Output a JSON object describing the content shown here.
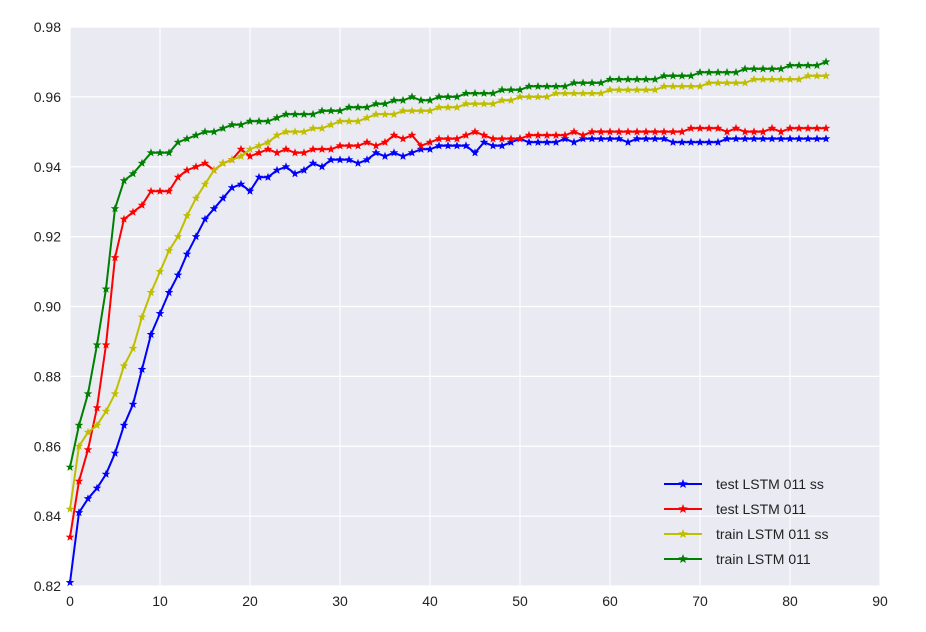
{
  "chart_data": {
    "type": "line",
    "title": "",
    "xlabel": "",
    "ylabel": "",
    "xlim": [
      0,
      90
    ],
    "ylim": [
      0.82,
      0.98
    ],
    "xticks": [
      "0",
      "10",
      "20",
      "30",
      "40",
      "50",
      "60",
      "70",
      "80",
      "90"
    ],
    "yticks": [
      "0.82",
      "0.84",
      "0.86",
      "0.88",
      "0.90",
      "0.92",
      "0.94",
      "0.96",
      "0.98"
    ],
    "grid": true,
    "legend_position": "bottom-right",
    "marker": "star",
    "background": "#eaeaf2",
    "grid_color": "#ffffff",
    "series": [
      {
        "name": "test LSTM 011 ss",
        "color": "#0000ff",
        "x": [
          0,
          1,
          2,
          3,
          4,
          5,
          6,
          7,
          8,
          9,
          10,
          11,
          12,
          13,
          14,
          15,
          16,
          17,
          18,
          19,
          20,
          21,
          22,
          23,
          24,
          25,
          26,
          27,
          28,
          29,
          30,
          31,
          32,
          33,
          34,
          35,
          36,
          37,
          38,
          39,
          40,
          41,
          42,
          43,
          44,
          45,
          46,
          47,
          48,
          49,
          50,
          51,
          52,
          53,
          54,
          55,
          56,
          57,
          58,
          59,
          60,
          61,
          62,
          63,
          64,
          65,
          66,
          67,
          68,
          69,
          70,
          71,
          72,
          73,
          74,
          75,
          76,
          77,
          78,
          79,
          80,
          81,
          82,
          83,
          84
        ],
        "y": [
          0.821,
          0.841,
          0.845,
          0.848,
          0.852,
          0.858,
          0.866,
          0.872,
          0.882,
          0.892,
          0.898,
          0.904,
          0.909,
          0.915,
          0.92,
          0.925,
          0.928,
          0.931,
          0.934,
          0.935,
          0.933,
          0.937,
          0.937,
          0.939,
          0.94,
          0.938,
          0.939,
          0.941,
          0.94,
          0.942,
          0.942,
          0.942,
          0.941,
          0.942,
          0.944,
          0.943,
          0.944,
          0.943,
          0.944,
          0.945,
          0.945,
          0.946,
          0.946,
          0.946,
          0.946,
          0.944,
          0.947,
          0.946,
          0.946,
          0.947,
          0.948,
          0.947,
          0.947,
          0.947,
          0.947,
          0.948,
          0.947,
          0.948,
          0.948,
          0.948,
          0.948,
          0.948,
          0.947,
          0.948,
          0.948,
          0.948,
          0.948,
          0.947,
          0.947,
          0.947,
          0.947,
          0.947,
          0.947,
          0.948,
          0.948,
          0.948,
          0.948,
          0.948,
          0.948,
          0.948,
          0.948,
          0.948,
          0.948,
          0.948,
          0.948
        ]
      },
      {
        "name": "test LSTM 011",
        "color": "#ff0000",
        "x": [
          0,
          1,
          2,
          3,
          4,
          5,
          6,
          7,
          8,
          9,
          10,
          11,
          12,
          13,
          14,
          15,
          16,
          17,
          18,
          19,
          20,
          21,
          22,
          23,
          24,
          25,
          26,
          27,
          28,
          29,
          30,
          31,
          32,
          33,
          34,
          35,
          36,
          37,
          38,
          39,
          40,
          41,
          42,
          43,
          44,
          45,
          46,
          47,
          48,
          49,
          50,
          51,
          52,
          53,
          54,
          55,
          56,
          57,
          58,
          59,
          60,
          61,
          62,
          63,
          64,
          65,
          66,
          67,
          68,
          69,
          70,
          71,
          72,
          73,
          74,
          75,
          76,
          77,
          78,
          79,
          80,
          81,
          82,
          83,
          84
        ],
        "y": [
          0.834,
          0.85,
          0.859,
          0.871,
          0.889,
          0.914,
          0.925,
          0.927,
          0.929,
          0.933,
          0.933,
          0.933,
          0.937,
          0.939,
          0.94,
          0.941,
          0.939,
          0.941,
          0.942,
          0.945,
          0.943,
          0.944,
          0.945,
          0.944,
          0.945,
          0.944,
          0.944,
          0.945,
          0.945,
          0.945,
          0.946,
          0.946,
          0.946,
          0.947,
          0.946,
          0.947,
          0.949,
          0.948,
          0.949,
          0.946,
          0.947,
          0.948,
          0.948,
          0.948,
          0.949,
          0.95,
          0.949,
          0.948,
          0.948,
          0.948,
          0.948,
          0.949,
          0.949,
          0.949,
          0.949,
          0.949,
          0.95,
          0.949,
          0.95,
          0.95,
          0.95,
          0.95,
          0.95,
          0.95,
          0.95,
          0.95,
          0.95,
          0.95,
          0.95,
          0.951,
          0.951,
          0.951,
          0.951,
          0.95,
          0.951,
          0.95,
          0.95,
          0.95,
          0.951,
          0.95,
          0.951,
          0.951,
          0.951,
          0.951,
          0.951
        ]
      },
      {
        "name": "train LSTM 011 ss",
        "color": "#bfbf00",
        "x": [
          0,
          1,
          2,
          3,
          4,
          5,
          6,
          7,
          8,
          9,
          10,
          11,
          12,
          13,
          14,
          15,
          16,
          17,
          18,
          19,
          20,
          21,
          22,
          23,
          24,
          25,
          26,
          27,
          28,
          29,
          30,
          31,
          32,
          33,
          34,
          35,
          36,
          37,
          38,
          39,
          40,
          41,
          42,
          43,
          44,
          45,
          46,
          47,
          48,
          49,
          50,
          51,
          52,
          53,
          54,
          55,
          56,
          57,
          58,
          59,
          60,
          61,
          62,
          63,
          64,
          65,
          66,
          67,
          68,
          69,
          70,
          71,
          72,
          73,
          74,
          75,
          76,
          77,
          78,
          79,
          80,
          81,
          82,
          83,
          84
        ],
        "y": [
          0.842,
          0.86,
          0.864,
          0.866,
          0.87,
          0.875,
          0.883,
          0.888,
          0.897,
          0.904,
          0.91,
          0.916,
          0.92,
          0.926,
          0.931,
          0.935,
          0.939,
          0.941,
          0.942,
          0.943,
          0.945,
          0.946,
          0.947,
          0.949,
          0.95,
          0.95,
          0.95,
          0.951,
          0.951,
          0.952,
          0.953,
          0.953,
          0.953,
          0.954,
          0.955,
          0.955,
          0.955,
          0.956,
          0.956,
          0.956,
          0.956,
          0.957,
          0.957,
          0.957,
          0.958,
          0.958,
          0.958,
          0.958,
          0.959,
          0.959,
          0.96,
          0.96,
          0.96,
          0.96,
          0.961,
          0.961,
          0.961,
          0.961,
          0.961,
          0.961,
          0.962,
          0.962,
          0.962,
          0.962,
          0.962,
          0.962,
          0.963,
          0.963,
          0.963,
          0.963,
          0.963,
          0.964,
          0.964,
          0.964,
          0.964,
          0.964,
          0.965,
          0.965,
          0.965,
          0.965,
          0.965,
          0.965,
          0.966,
          0.966,
          0.966
        ]
      },
      {
        "name": "train LSTM 011",
        "color": "#008000",
        "x": [
          0,
          1,
          2,
          3,
          4,
          5,
          6,
          7,
          8,
          9,
          10,
          11,
          12,
          13,
          14,
          15,
          16,
          17,
          18,
          19,
          20,
          21,
          22,
          23,
          24,
          25,
          26,
          27,
          28,
          29,
          30,
          31,
          32,
          33,
          34,
          35,
          36,
          37,
          38,
          39,
          40,
          41,
          42,
          43,
          44,
          45,
          46,
          47,
          48,
          49,
          50,
          51,
          52,
          53,
          54,
          55,
          56,
          57,
          58,
          59,
          60,
          61,
          62,
          63,
          64,
          65,
          66,
          67,
          68,
          69,
          70,
          71,
          72,
          73,
          74,
          75,
          76,
          77,
          78,
          79,
          80,
          81,
          82,
          83,
          84
        ],
        "y": [
          0.854,
          0.866,
          0.875,
          0.889,
          0.905,
          0.928,
          0.936,
          0.938,
          0.941,
          0.944,
          0.944,
          0.944,
          0.947,
          0.948,
          0.949,
          0.95,
          0.95,
          0.951,
          0.952,
          0.952,
          0.953,
          0.953,
          0.953,
          0.954,
          0.955,
          0.955,
          0.955,
          0.955,
          0.956,
          0.956,
          0.956,
          0.957,
          0.957,
          0.957,
          0.958,
          0.958,
          0.959,
          0.959,
          0.96,
          0.959,
          0.959,
          0.96,
          0.96,
          0.96,
          0.961,
          0.961,
          0.961,
          0.961,
          0.962,
          0.962,
          0.962,
          0.963,
          0.963,
          0.963,
          0.963,
          0.963,
          0.964,
          0.964,
          0.964,
          0.964,
          0.965,
          0.965,
          0.965,
          0.965,
          0.965,
          0.965,
          0.966,
          0.966,
          0.966,
          0.966,
          0.967,
          0.967,
          0.967,
          0.967,
          0.967,
          0.968,
          0.968,
          0.968,
          0.968,
          0.968,
          0.969,
          0.969,
          0.969,
          0.969,
          0.97
        ]
      }
    ]
  }
}
